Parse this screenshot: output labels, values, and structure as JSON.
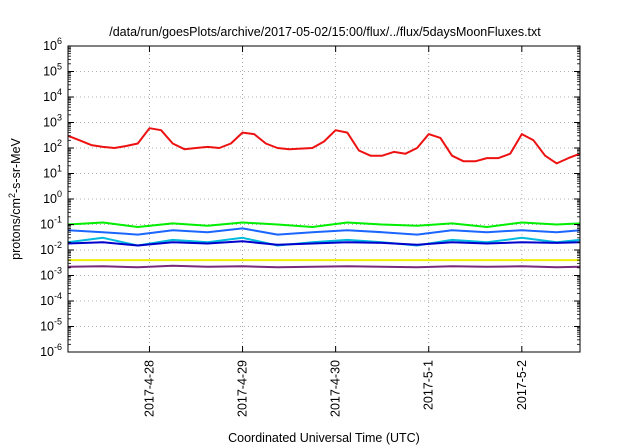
{
  "chart_data": {
    "type": "line",
    "title": "/data/run/goesPlots/archive/2017-05-02/15:00/flux/../flux/5daysMoonFluxes.txt",
    "xlabel": "Coordinated Universal Time (UTC)",
    "ylabel": {
      "prefix": "protons/cm",
      "superscript": "2",
      "suffix": "-s-sr-MeV"
    },
    "y_scale": "log",
    "ylim": [
      1e-06,
      1000000.0
    ],
    "y_ticks": [
      {
        "value": 1e-06,
        "base": "10",
        "exp": "-6"
      },
      {
        "value": 1e-05,
        "base": "10",
        "exp": "-5"
      },
      {
        "value": 0.0001,
        "base": "10",
        "exp": "-4"
      },
      {
        "value": 0.001,
        "base": "10",
        "exp": "-3"
      },
      {
        "value": 0.01,
        "base": "10",
        "exp": "-2"
      },
      {
        "value": 0.1,
        "base": "10",
        "exp": "-1"
      },
      {
        "value": 1,
        "base": "10",
        "exp": "0"
      },
      {
        "value": 10,
        "base": "10",
        "exp": "1"
      },
      {
        "value": 100,
        "base": "10",
        "exp": "2"
      },
      {
        "value": 1000,
        "base": "10",
        "exp": "3"
      },
      {
        "value": 10000.0,
        "base": "10",
        "exp": "4"
      },
      {
        "value": 100000.0,
        "base": "10",
        "exp": "5"
      },
      {
        "value": 1000000.0,
        "base": "10",
        "exp": "6"
      }
    ],
    "xlim": [
      "2017-04-27T03:00",
      "2017-05-02T15:00"
    ],
    "x_ticks": [
      {
        "value": "2017-04-28T00:00",
        "label": "2017-4-28"
      },
      {
        "value": "2017-04-29T00:00",
        "label": "2017-4-29"
      },
      {
        "value": "2017-04-30T00:00",
        "label": "2017-4-30"
      },
      {
        "value": "2017-05-01T00:00",
        "label": "2017-5-1"
      },
      {
        "value": "2017-05-02T00:00",
        "label": "2017-5-2"
      }
    ],
    "grid": true,
    "series": [
      {
        "color": "#ee1111",
        "x": [
          "2017-04-27T03:00",
          "2017-04-27T06:00",
          "2017-04-27T09:00",
          "2017-04-27T12:00",
          "2017-04-27T15:00",
          "2017-04-27T18:00",
          "2017-04-27T21:00",
          "2017-04-28T00:00",
          "2017-04-28T03:00",
          "2017-04-28T06:00",
          "2017-04-28T09:00",
          "2017-04-28T12:00",
          "2017-04-28T15:00",
          "2017-04-28T18:00",
          "2017-04-28T21:00",
          "2017-04-29T00:00",
          "2017-04-29T03:00",
          "2017-04-29T06:00",
          "2017-04-29T09:00",
          "2017-04-29T12:00",
          "2017-04-29T15:00",
          "2017-04-29T18:00",
          "2017-04-29T21:00",
          "2017-04-30T00:00",
          "2017-04-30T03:00",
          "2017-04-30T06:00",
          "2017-04-30T09:00",
          "2017-04-30T12:00",
          "2017-04-30T15:00",
          "2017-04-30T18:00",
          "2017-04-30T21:00",
          "2017-05-01T00:00",
          "2017-05-01T03:00",
          "2017-05-01T06:00",
          "2017-05-01T09:00",
          "2017-05-01T12:00",
          "2017-05-01T15:00",
          "2017-05-01T18:00",
          "2017-05-01T21:00",
          "2017-05-02T00:00",
          "2017-05-02T03:00",
          "2017-05-02T06:00",
          "2017-05-02T09:00",
          "2017-05-02T12:00",
          "2017-05-02T15:00"
        ],
        "y": [
          300,
          200,
          130,
          110,
          100,
          120,
          150,
          600,
          500,
          150,
          90,
          100,
          110,
          100,
          150,
          400,
          350,
          150,
          100,
          90,
          95,
          100,
          180,
          500,
          400,
          80,
          50,
          50,
          70,
          60,
          100,
          350,
          250,
          50,
          30,
          30,
          40,
          40,
          60,
          350,
          200,
          50,
          25,
          40,
          60
        ]
      },
      {
        "color": "#00ee00",
        "x": [
          "2017-04-27T03:00",
          "2017-04-27T12:00",
          "2017-04-27T21:00",
          "2017-04-28T06:00",
          "2017-04-28T15:00",
          "2017-04-29T00:00",
          "2017-04-29T09:00",
          "2017-04-29T18:00",
          "2017-04-30T03:00",
          "2017-04-30T12:00",
          "2017-04-30T21:00",
          "2017-05-01T06:00",
          "2017-05-01T15:00",
          "2017-05-02T00:00",
          "2017-05-02T09:00",
          "2017-05-02T15:00"
        ],
        "y": [
          0.1,
          0.12,
          0.08,
          0.11,
          0.09,
          0.12,
          0.1,
          0.08,
          0.12,
          0.1,
          0.09,
          0.11,
          0.08,
          0.12,
          0.1,
          0.11
        ]
      },
      {
        "color": "#00bbdd",
        "x": [
          "2017-04-27T03:00",
          "2017-04-27T12:00",
          "2017-04-27T21:00",
          "2017-04-28T06:00",
          "2017-04-28T15:00",
          "2017-04-29T00:00",
          "2017-04-29T09:00",
          "2017-04-29T18:00",
          "2017-04-30T03:00",
          "2017-04-30T12:00",
          "2017-04-30T21:00",
          "2017-05-01T06:00",
          "2017-05-01T15:00",
          "2017-05-02T00:00",
          "2017-05-02T09:00",
          "2017-05-02T15:00"
        ],
        "y": [
          0.02,
          0.03,
          0.015,
          0.025,
          0.02,
          0.03,
          0.015,
          0.02,
          0.025,
          0.02,
          0.015,
          0.025,
          0.02,
          0.03,
          0.02,
          0.025
        ]
      },
      {
        "color": "#1a66ff",
        "x": [
          "2017-04-27T03:00",
          "2017-04-27T12:00",
          "2017-04-27T21:00",
          "2017-04-28T06:00",
          "2017-04-28T15:00",
          "2017-04-29T00:00",
          "2017-04-29T09:00",
          "2017-04-29T18:00",
          "2017-04-30T03:00",
          "2017-04-30T12:00",
          "2017-04-30T21:00",
          "2017-05-01T06:00",
          "2017-05-01T15:00",
          "2017-05-02T00:00",
          "2017-05-02T09:00",
          "2017-05-02T15:00"
        ],
        "y": [
          0.06,
          0.05,
          0.04,
          0.06,
          0.05,
          0.07,
          0.04,
          0.05,
          0.06,
          0.05,
          0.04,
          0.06,
          0.05,
          0.06,
          0.05,
          0.06
        ]
      },
      {
        "color": "#0000cc",
        "x": [
          "2017-04-27T03:00",
          "2017-04-27T12:00",
          "2017-04-27T21:00",
          "2017-04-28T06:00",
          "2017-04-28T15:00",
          "2017-04-29T00:00",
          "2017-04-29T09:00",
          "2017-04-29T18:00",
          "2017-04-30T03:00",
          "2017-04-30T12:00",
          "2017-04-30T21:00",
          "2017-05-01T06:00",
          "2017-05-01T15:00",
          "2017-05-02T00:00",
          "2017-05-02T09:00",
          "2017-05-02T15:00"
        ],
        "y": [
          0.018,
          0.02,
          0.015,
          0.02,
          0.018,
          0.022,
          0.016,
          0.018,
          0.02,
          0.019,
          0.016,
          0.02,
          0.018,
          0.02,
          0.019,
          0.02
        ]
      },
      {
        "color": "#eeee00",
        "x": [
          "2017-04-27T03:00",
          "2017-04-28T00:00",
          "2017-04-29T00:00",
          "2017-04-30T00:00",
          "2017-05-01T00:00",
          "2017-05-02T00:00",
          "2017-05-02T15:00"
        ],
        "y": [
          0.004,
          0.004,
          0.004,
          0.004,
          0.004,
          0.004,
          0.004
        ]
      },
      {
        "color": "#7a2a7a",
        "x": [
          "2017-04-27T03:00",
          "2017-04-27T12:00",
          "2017-04-27T21:00",
          "2017-04-28T06:00",
          "2017-04-28T15:00",
          "2017-04-29T00:00",
          "2017-04-29T09:00",
          "2017-04-29T18:00",
          "2017-04-30T03:00",
          "2017-04-30T12:00",
          "2017-04-30T21:00",
          "2017-05-01T06:00",
          "2017-05-01T15:00",
          "2017-05-02T00:00",
          "2017-05-02T09:00",
          "2017-05-02T15:00"
        ],
        "y": [
          0.0022,
          0.0023,
          0.0021,
          0.0024,
          0.0022,
          0.0023,
          0.0021,
          0.0022,
          0.0023,
          0.0022,
          0.0021,
          0.0023,
          0.0022,
          0.0023,
          0.0021,
          0.0022
        ]
      }
    ]
  }
}
